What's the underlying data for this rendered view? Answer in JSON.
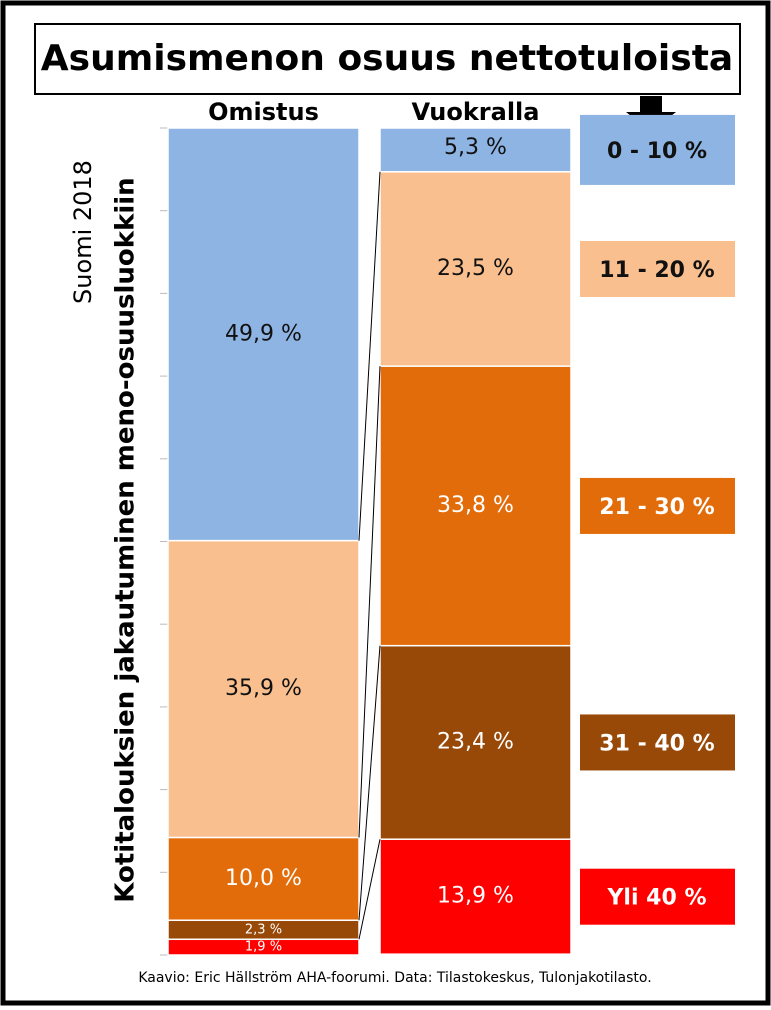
{
  "chart_data": {
    "type": "stacked_bar",
    "title": "Asumismenon osuus nettotuloista",
    "subtitle": "Suomi 2018",
    "y_label": "Kotitalouksien jakautuminen meno-osuusluokkiin",
    "source": "Kaavio: Eric Hällström  AHA-foorumi.  Data: Tilastokeskus, Tulonjakotilasto.",
    "categories": [
      "Omistus",
      "Vuokralla"
    ],
    "ylim": [
      0,
      100
    ],
    "yticks": [
      0,
      10,
      20,
      30,
      40,
      50,
      60,
      70,
      80,
      90,
      100
    ],
    "stack_from": "top",
    "series": [
      {
        "name": "0 - 10 %",
        "color": "#8eb4e3",
        "text_color": "#111111",
        "values": [
          49.9,
          5.3
        ],
        "value_labels": [
          "49,9 %",
          "5,3 %"
        ]
      },
      {
        "name": "11 - 20 %",
        "color": "#f9bf8f",
        "text_color": "#111111",
        "values": [
          35.9,
          23.5
        ],
        "value_labels": [
          "35,9 %",
          "23,5 %"
        ]
      },
      {
        "name": "21 - 30 %",
        "color": "#e36c0a",
        "text_color": "#ffffff",
        "values": [
          10.0,
          33.8
        ],
        "value_labels": [
          "10,0 %",
          "33,8 %"
        ]
      },
      {
        "name": "31 - 40 %",
        "color": "#984807",
        "text_color": "#ffffff",
        "values": [
          2.3,
          23.4
        ],
        "value_labels": [
          "2,3 %",
          "23,4 %"
        ]
      },
      {
        "name": "Yli 40 %",
        "color": "#ff0000",
        "text_color": "#ffffff",
        "values": [
          1.9,
          13.9
        ],
        "value_labels": [
          "1,9 %",
          "13,9 %"
        ]
      }
    ]
  }
}
